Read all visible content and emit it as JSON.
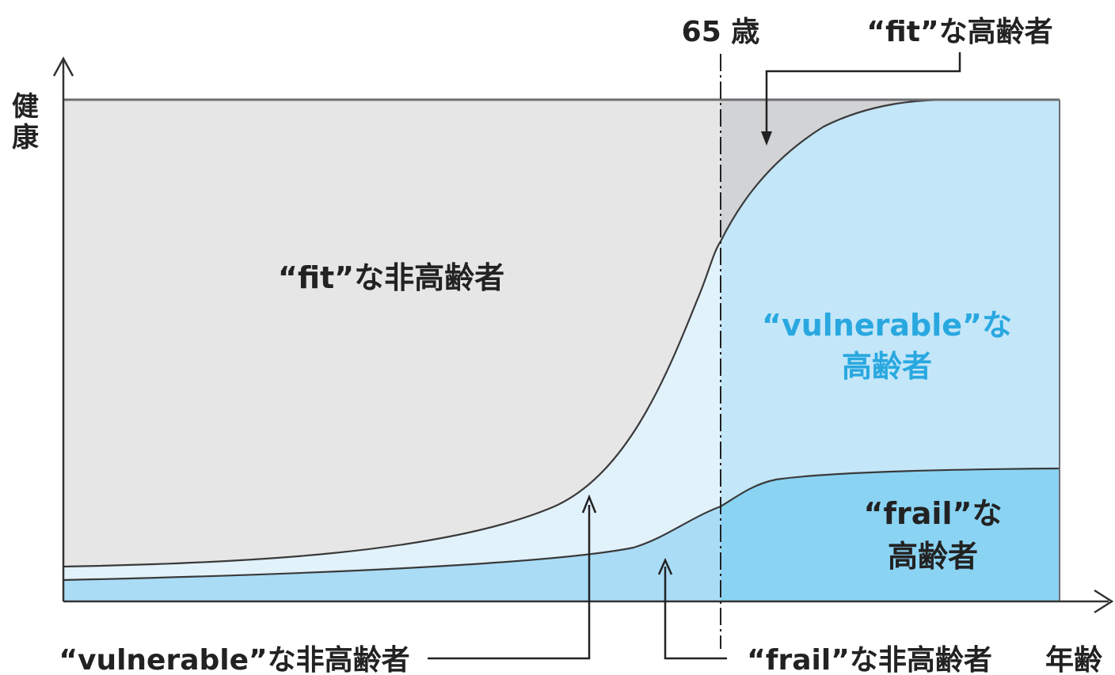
{
  "axes": {
    "y_label": "健康",
    "x_label": "年齢"
  },
  "marker": {
    "label": "65 歳"
  },
  "regions": {
    "fit_non_elderly": "“fit”な非高齢者",
    "fit_elderly": "“fit”な高齢者",
    "vulnerable_elderly_line1": "“vulnerable”な",
    "vulnerable_elderly_line2": "高齢者",
    "frail_elderly_line1": "“frail”な",
    "frail_elderly_line2": "高齢者",
    "vulnerable_non_elderly": "“vulnerable”な非高齢者",
    "frail_non_elderly": "“frail”な非高齢者"
  },
  "colors": {
    "fit_non_elderly_fill": "#e6e6e7",
    "fit_elderly_fill": "#d2d3d5",
    "vulnerable_non_elderly_fill": "#e2f2fb",
    "vulnerable_elderly_fill": "#c3e6f8",
    "frail_non_elderly_fill": "#aadcf6",
    "frail_elderly_fill": "#8ad3f3",
    "vulnerable_text": "#29a8e0",
    "dark_text": "#222222",
    "line": "#3a3a3a",
    "frame": "#6d6e70"
  }
}
